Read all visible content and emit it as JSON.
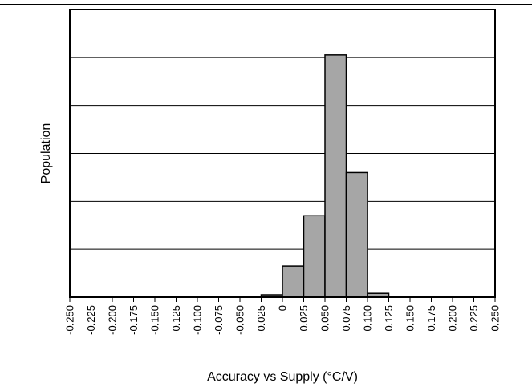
{
  "chart_data": {
    "type": "bar",
    "title": "",
    "xlabel": "Accuracy vs Supply (°C/V)",
    "ylabel": "Population",
    "x_ticks": [
      "-0.250",
      "-0.225",
      "-0.200",
      "-0.175",
      "-0.150",
      "-0.125",
      "-0.100",
      "-0.075",
      "-0.050",
      "-0.025",
      "0",
      "0.025",
      "0.050",
      "0.075",
      "0.100",
      "0.125",
      "0.150",
      "0.175",
      "0.200",
      "0.225",
      "0.250"
    ],
    "bins": [
      {
        "from": -0.025,
        "to": 0.0,
        "value": 0.05
      },
      {
        "from": 0.0,
        "to": 0.025,
        "value": 0.65
      },
      {
        "from": 0.025,
        "to": 0.05,
        "value": 1.7
      },
      {
        "from": 0.05,
        "to": 0.075,
        "value": 5.05
      },
      {
        "from": 0.075,
        "to": 0.1,
        "value": 2.6
      },
      {
        "from": 0.1,
        "to": 0.125,
        "value": 0.08
      }
    ],
    "xlim": [
      -0.25,
      0.25
    ],
    "ylim": [
      0,
      6
    ],
    "y_gridlines": [
      1,
      2,
      3,
      4,
      5
    ],
    "y_tick_labels_shown": false,
    "grid": "horizontal",
    "bar_color": "#a6a6a6",
    "bar_edge_color": "#000000"
  }
}
